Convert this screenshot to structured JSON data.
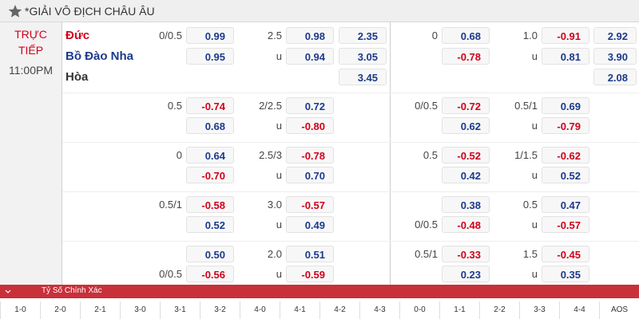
{
  "header": {
    "title": "*GIẢI VÔ ĐỊCH CHÂU ÂU"
  },
  "match": {
    "status": [
      "TRỰC",
      "TIẾP"
    ],
    "time": "11:00PM",
    "teams": [
      "Đức",
      "Bồ Đào Nha",
      "Hòa"
    ]
  },
  "odds": [
    {
      "rows": [
        [
          "0/0.5",
          "0.99",
          "2.5",
          "0.98",
          "2.35",
          "0",
          "0.68",
          "1.0",
          "-0.91",
          "2.92"
        ],
        [
          null,
          "0.95",
          "u",
          "0.94",
          "3.05",
          null,
          "-0.78",
          "u",
          "0.81",
          "3.90"
        ],
        [
          null,
          null,
          null,
          null,
          "3.45",
          null,
          null,
          null,
          null,
          "2.08"
        ]
      ]
    },
    {
      "rows": [
        [
          "0.5",
          "-0.74",
          "2/2.5",
          "0.72",
          null,
          "0/0.5",
          "-0.72",
          "0.5/1",
          "0.69",
          null
        ],
        [
          null,
          "0.68",
          "u",
          "-0.80",
          null,
          null,
          "0.62",
          "u",
          "-0.79",
          null
        ]
      ]
    },
    {
      "rows": [
        [
          "0",
          "0.64",
          "2.5/3",
          "-0.78",
          null,
          "0.5",
          "-0.52",
          "1/1.5",
          "-0.62",
          null
        ],
        [
          null,
          "-0.70",
          "u",
          "0.70",
          null,
          null,
          "0.42",
          "u",
          "0.52",
          null
        ]
      ]
    },
    {
      "rows": [
        [
          "0.5/1",
          "-0.58",
          "3.0",
          "-0.57",
          null,
          null,
          "0.38",
          "0.5",
          "0.47",
          null
        ],
        [
          null,
          "0.52",
          "u",
          "0.49",
          null,
          "0/0.5",
          "-0.48",
          "u",
          "-0.57",
          null
        ]
      ]
    },
    {
      "rows": [
        [
          null,
          "0.50",
          "2.0",
          "0.51",
          null,
          "0.5/1",
          "-0.33",
          "1.5",
          "-0.45",
          null
        ],
        [
          "0/0.5",
          "-0.56",
          "u",
          "-0.59",
          null,
          null,
          "0.23",
          "u",
          "0.35",
          null
        ]
      ]
    }
  ],
  "correct_score": {
    "title": "Tỷ Số Chính Xác",
    "scores": [
      "1-0",
      "2-0",
      "2-1",
      "3-0",
      "3-1",
      "3-2",
      "4-0",
      "4-1",
      "4-2",
      "4-3",
      "0-0",
      "1-1",
      "2-2",
      "3-3",
      "4-4",
      "AOS"
    ]
  }
}
